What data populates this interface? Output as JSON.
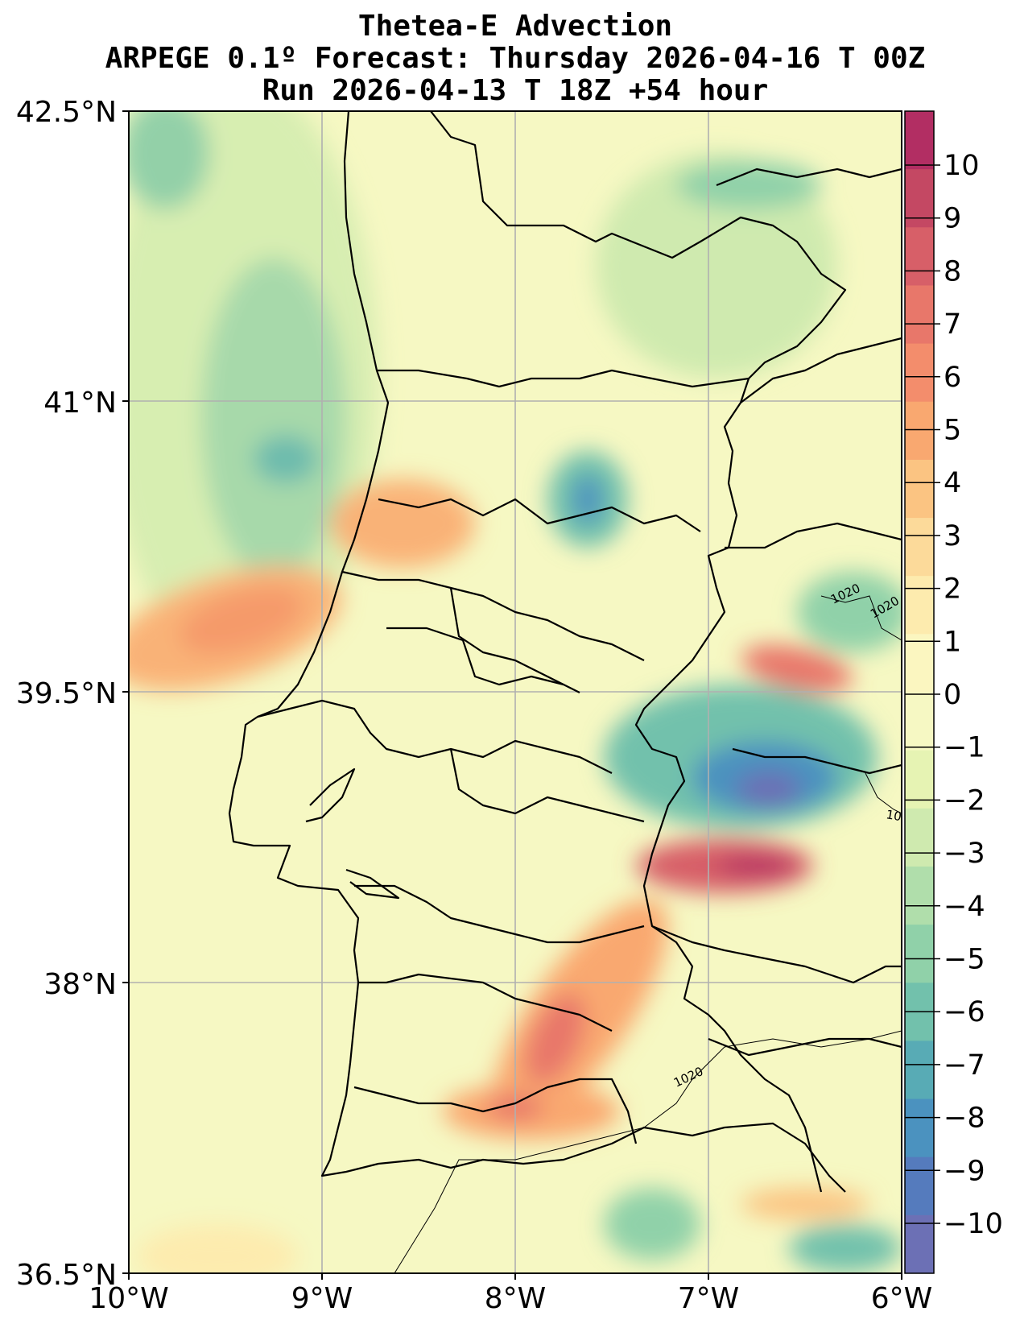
{
  "title": {
    "line1": "Thetea-E Advection",
    "line2": "ARPEGE 0.1º Forecast: Thursday 2026-04-16 T 00Z",
    "line3": "Run 2026-04-13 T 18Z +54 hour"
  },
  "axes": {
    "lon_ticks": [
      "10°W",
      "9°W",
      "8°W",
      "7°W",
      "6°W"
    ],
    "lat_ticks": [
      "42.5°N",
      "41°N",
      "39.5°N",
      "38°N",
      "36.5°N"
    ],
    "lon_range": [
      -10,
      -6
    ],
    "lat_range": [
      36.5,
      42.5
    ],
    "grid": true
  },
  "colorbar": {
    "labels": [
      "10",
      "9",
      "8",
      "7",
      "6",
      "5",
      "4",
      "3",
      "2",
      "1",
      "0",
      "−1",
      "−2",
      "−3",
      "−4",
      "−5",
      "−6",
      "−7",
      "−8",
      "−9",
      "−10"
    ],
    "colors": [
      "#b22e63",
      "#c44863",
      "#d75f68",
      "#e8776a",
      "#f38d6c",
      "#f9a870",
      "#fbc482",
      "#fcda9a",
      "#fdebae",
      "#fbf6c0",
      "#f6f8c3",
      "#e6f3b3",
      "#cfeaaf",
      "#b0deab",
      "#90d1a9",
      "#72c1ac",
      "#58abb5",
      "#4b92bf",
      "#557bbd",
      "#6c70b5"
    ],
    "palette": "Spectral_r"
  },
  "contour_labels": [
    "1020",
    "1020",
    "10",
    "1020"
  ],
  "map_features": [
    "coastline",
    "country-border",
    "district-borders",
    "isobars"
  ]
}
